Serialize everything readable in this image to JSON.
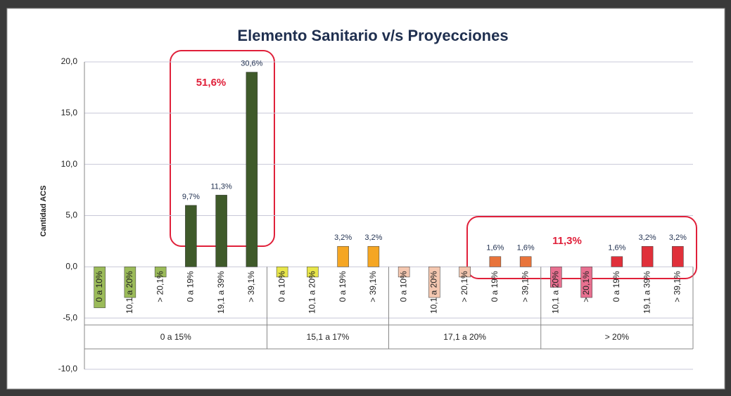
{
  "chart_data": {
    "type": "bar",
    "title": "Elemento Sanitario v/s Proyecciones",
    "y_label": "Cantidad ACS",
    "ylim": [
      -10,
      20
    ],
    "yticks": [
      {
        "value": -10,
        "label": "-10,0"
      },
      {
        "value": -5,
        "label": "-5,0"
      },
      {
        "value": 0,
        "label": "0,0"
      },
      {
        "value": 5,
        "label": "5,0"
      },
      {
        "value": 10,
        "label": "10,0"
      },
      {
        "value": 15,
        "label": "15,0"
      },
      {
        "value": 20,
        "label": "20,0"
      }
    ],
    "grid": true,
    "groups": [
      {
        "name": "0 a 15%",
        "categories": [
          "0 a 10%",
          "10,1 a 20%",
          "> 20,1%",
          "0 a 19%",
          "19,1 a 39%",
          "> 39,1%"
        ],
        "values": [
          -4,
          -3,
          -1,
          6,
          7,
          19
        ],
        "colors": [
          "#9bbb59",
          "#9bbb59",
          "#9bbb59",
          "#3f5a2a",
          "#3f5a2a",
          "#3f5a2a"
        ],
        "bar_labels": [
          null,
          null,
          null,
          "9,7%",
          "11,3%",
          "30,6%"
        ]
      },
      {
        "name": "15,1 a 17%",
        "categories": [
          "0 a 10%",
          "10,1 a 20%",
          "0 a 19%",
          "> 39,1%"
        ],
        "values": [
          -1,
          -1,
          2,
          2
        ],
        "colors": [
          "#e8e64a",
          "#e8e64a",
          "#f5a623",
          "#f5a623"
        ],
        "bar_labels": [
          null,
          null,
          "3,2%",
          "3,2%"
        ]
      },
      {
        "name": "17,1 a 20%",
        "categories": [
          "0 a 10%",
          "10,1 a 20%",
          "> 20,1%",
          "0 a 19%",
          "> 39,1%"
        ],
        "values": [
          -1,
          -3,
          -1,
          1,
          1
        ],
        "colors": [
          "#f4c7b0",
          "#f4c7b0",
          "#f4c7b0",
          "#e8743b",
          "#e8743b"
        ],
        "bar_labels": [
          null,
          null,
          null,
          "1,6%",
          "1,6%"
        ]
      },
      {
        "name": "> 20%",
        "categories": [
          "10,1 a 20%",
          "> 20,1%",
          "0 a 19%",
          "19,1 a 39%",
          "> 39,1%"
        ],
        "values": [
          -2,
          -3,
          1,
          2,
          2
        ],
        "colors": [
          "#e87090",
          "#e87090",
          "#e0303a",
          "#e0303a",
          "#e0303a"
        ],
        "bar_labels": [
          null,
          null,
          "1,6%",
          "3,2%",
          "3,2%"
        ]
      }
    ],
    "annotations": [
      "51,6%",
      "11,3%"
    ]
  }
}
